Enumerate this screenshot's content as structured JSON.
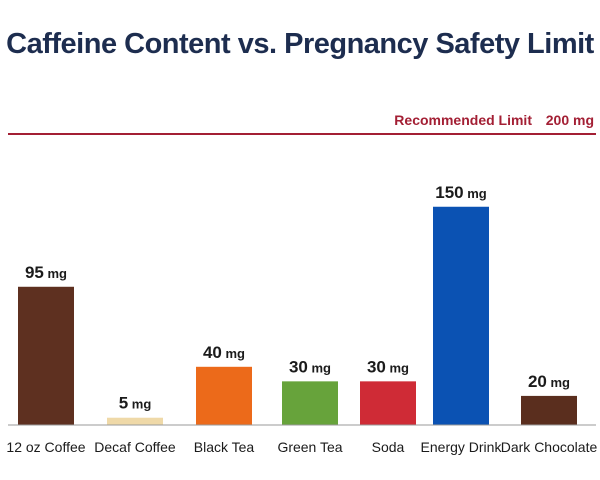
{
  "chart_data": {
    "type": "bar",
    "title": "Caffeine Content vs. Pregnancy Safety Limit",
    "categories": [
      "12 oz Coffee",
      "Decaf Coffee",
      "Black Tea",
      "Green Tea",
      "Soda",
      "Energy Drink",
      "Dark Chocolate"
    ],
    "values": [
      95,
      5,
      40,
      30,
      30,
      150,
      20
    ],
    "unit": "mg",
    "colors": [
      "#5e3020",
      "#efd9a8",
      "#ec6a1a",
      "#67a33b",
      "#cf2b36",
      "#0b52b3",
      "#5a2e1e"
    ],
    "ylim": [
      0,
      200
    ],
    "grid": false,
    "reference_line": {
      "label": "Recommended Limit",
      "value": 200,
      "value_label": "200 mg",
      "color": "#a31f34"
    }
  }
}
